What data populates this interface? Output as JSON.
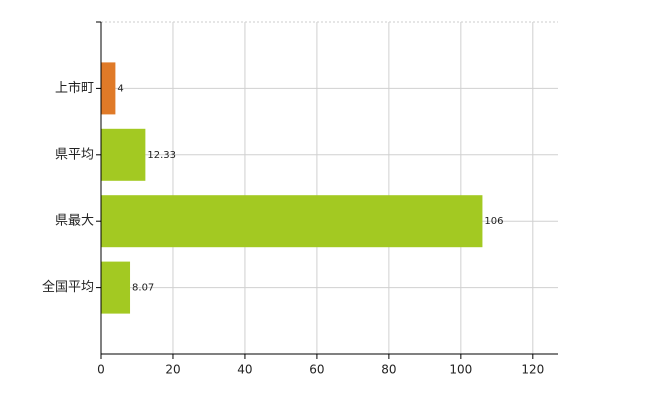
{
  "chart_data": {
    "type": "bar",
    "orientation": "horizontal",
    "categories": [
      "上市町",
      "県平均",
      "県最大",
      "全国平均"
    ],
    "values": [
      4,
      12.33,
      106,
      8.07
    ],
    "colors": [
      "#e07a28",
      "#a3c922",
      "#a3c922",
      "#a3c922"
    ],
    "xlim": [
      0,
      127
    ],
    "xticks": [
      0,
      20,
      40,
      60,
      80,
      100,
      120
    ],
    "grid": true
  }
}
